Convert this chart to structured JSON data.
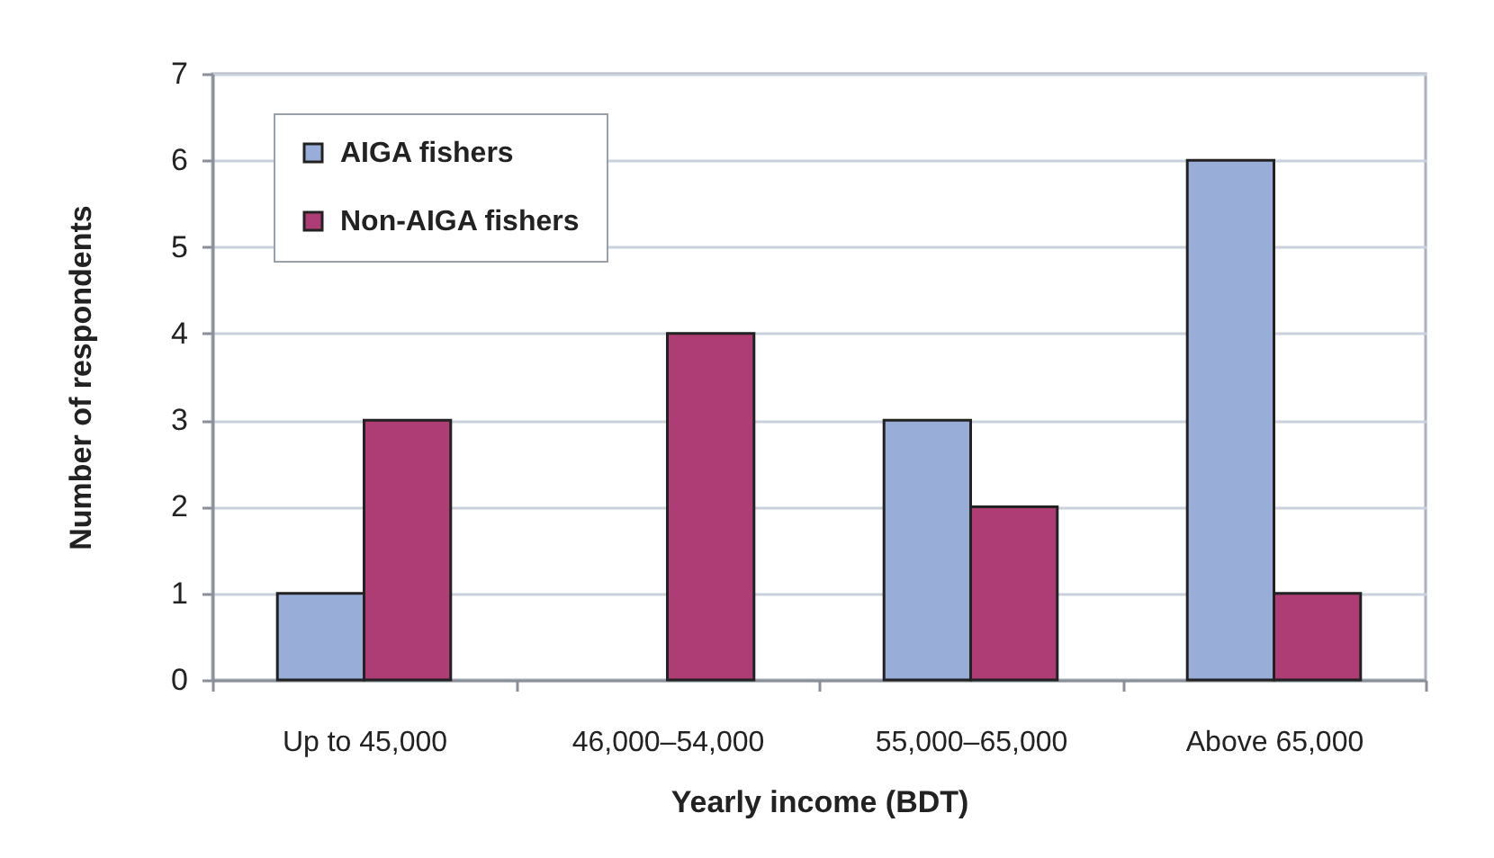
{
  "chart_data": {
    "type": "bar",
    "xlabel": "Yearly income (BDT)",
    "ylabel": "Number of respondents",
    "categories": [
      "Up to 45,000",
      "46,000–54,000",
      "55,000–65,000",
      "Above 65,000"
    ],
    "series": [
      {
        "name": "AIGA fishers",
        "color": "#98aed8",
        "values": [
          1,
          0,
          3,
          6
        ]
      },
      {
        "name": "Non-AIGA fishers",
        "color": "#ae3c75",
        "values": [
          3,
          4,
          2,
          1
        ]
      }
    ],
    "ylim": [
      0,
      7
    ],
    "yticks": [
      0,
      1,
      2,
      3,
      4,
      5,
      6,
      7
    ],
    "grid": "y",
    "legend": "top left"
  }
}
